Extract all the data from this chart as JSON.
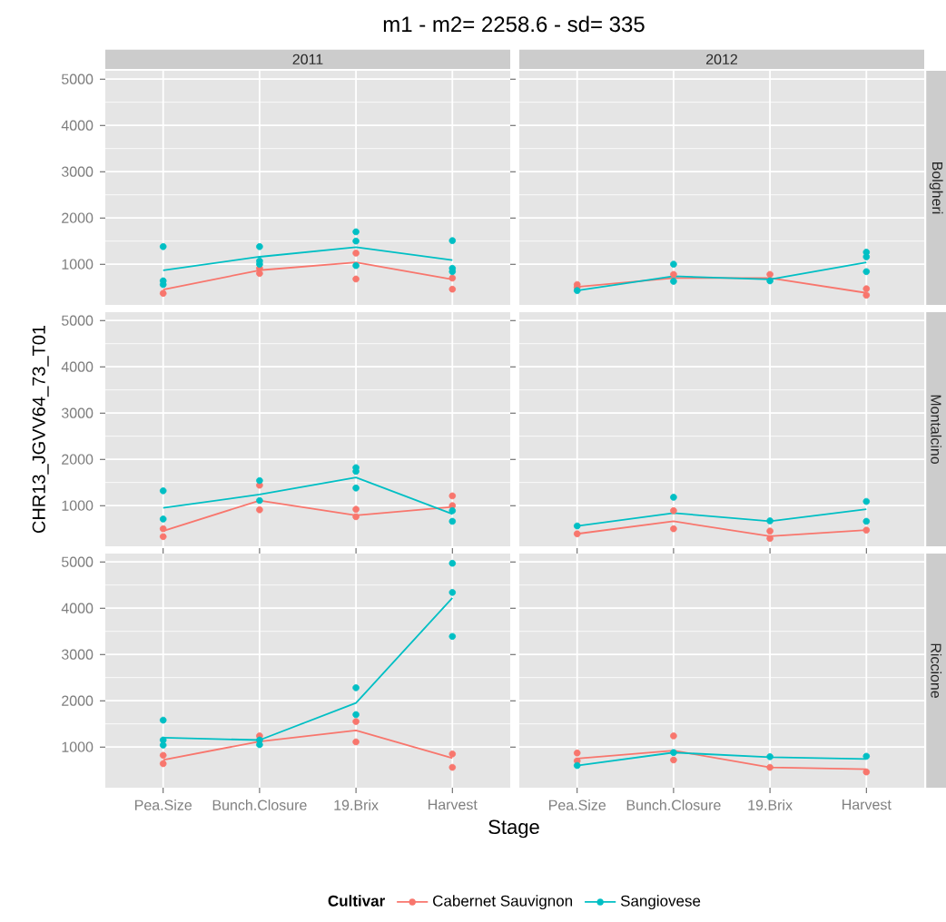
{
  "chart_data": [
    {
      "type": "line",
      "title": "m1 - m2= 2258.6  - sd= 335",
      "subtitle": "2011",
      "categories": [
        "Pea.Size",
        "Bunch.Closure",
        "19.Brix",
        "Harvest"
      ],
      "ylim": [
        120,
        5180
      ],
      "yticks": [
        1000,
        2000,
        3000,
        4000,
        5000
      ],
      "grid": true,
      "tick_labels": "y",
      "legend": "bottom",
      "legend_title": "Cultivar",
      "series": [
        {
          "name": "Cabernet Sauvignon",
          "color": "#f8766d",
          "values": [
            450,
            870,
            1040,
            670
          ]
        },
        {
          "name": "Sangiovese",
          "color": "#00bfc4",
          "values": [
            870,
            1160,
            1370,
            1090
          ]
        },
        {
          "type": "scatter",
          "color": "#f8766d",
          "x": [
            "Pea.Size",
            "Pea.Size",
            "Bunch.Closure",
            "Bunch.Closure",
            "19.Brix",
            "19.Brix",
            "Harvest",
            "Harvest"
          ],
          "values": [
            null,
            370,
            910,
            800,
            1240,
            680,
            700,
            460
          ]
        },
        {
          "type": "scatter",
          "color": "#00bfc4",
          "x": [
            "Pea.Size",
            "Pea.Size",
            "Pea.Size",
            "Bunch.Closure",
            "Bunch.Closure",
            "Bunch.Closure",
            "19.Brix",
            "19.Brix",
            "19.Brix",
            "Harvest",
            "Harvest",
            "Harvest"
          ],
          "values": [
            1380,
            640,
            560,
            1380,
            1070,
            1000,
            1700,
            1500,
            970,
            1510,
            910,
            840
          ]
        }
      ]
    },
    {
      "type": "line",
      "subtitle": "2012",
      "y2label": "Bolgheri",
      "categories": [
        "Pea.Size",
        "Bunch.Closure",
        "19.Brix",
        "Harvest"
      ],
      "ylim": [
        120,
        5180
      ],
      "yticks": [
        1000,
        2000,
        3000,
        4000,
        5000
      ],
      "grid": true,
      "tick_labels": false,
      "series": [
        {
          "color": "#f8766d",
          "values": [
            510,
            700,
            700,
            380
          ]
        },
        {
          "color": "#00bfc4",
          "values": [
            430,
            740,
            670,
            1040
          ]
        },
        {
          "type": "scatter",
          "color": "#f8766d",
          "x": [
            "Pea.Size",
            "Pea.Size",
            "Bunch.Closure",
            "Bunch.Closure",
            "19.Brix",
            "19.Brix",
            "Harvest",
            "Harvest"
          ],
          "values": [
            560,
            500,
            780,
            null,
            780,
            null,
            470,
            330
          ]
        },
        {
          "type": "scatter",
          "color": "#00bfc4",
          "x": [
            "Pea.Size",
            "Bunch.Closure",
            "Bunch.Closure",
            "19.Brix",
            "Harvest",
            "Harvest",
            "Harvest"
          ],
          "values": [
            430,
            1000,
            630,
            640,
            1260,
            1160,
            840
          ]
        }
      ]
    },
    {
      "type": "line",
      "ylabel": "CHR13_JGVV64_73_T01",
      "categories": [
        "Pea.Size",
        "Bunch.Closure",
        "19.Brix",
        "Harvest"
      ],
      "ylim": [
        120,
        5180
      ],
      "yticks": [
        1000,
        2000,
        3000,
        4000,
        5000
      ],
      "grid": true,
      "tick_labels": "y",
      "series": [
        {
          "color": "#f8766d",
          "values": [
            450,
            1110,
            790,
            970
          ]
        },
        {
          "color": "#00bfc4",
          "values": [
            950,
            1240,
            1610,
            820
          ]
        },
        {
          "type": "scatter",
          "color": "#f8766d",
          "x": [
            "Pea.Size",
            "Pea.Size",
            "Bunch.Closure",
            "Bunch.Closure",
            "19.Brix",
            "19.Brix",
            "Harvest",
            "Harvest"
          ],
          "values": [
            500,
            330,
            1440,
            910,
            920,
            760,
            1210,
            1000
          ]
        },
        {
          "type": "scatter",
          "color": "#00bfc4",
          "x": [
            "Pea.Size",
            "Pea.Size",
            "Bunch.Closure",
            "Bunch.Closure",
            "19.Brix",
            "19.Brix",
            "19.Brix",
            "Harvest",
            "Harvest"
          ],
          "values": [
            1320,
            710,
            1540,
            1110,
            1820,
            1740,
            1380,
            890,
            660
          ]
        }
      ]
    },
    {
      "type": "line",
      "y2label": "Montalcino",
      "categories": [
        "Pea.Size",
        "Bunch.Closure",
        "19.Brix",
        "Harvest"
      ],
      "ylim": [
        120,
        5180
      ],
      "yticks": [
        1000,
        2000,
        3000,
        4000,
        5000
      ],
      "grid": true,
      "tick_labels": false,
      "series": [
        {
          "color": "#f8766d",
          "values": [
            390,
            660,
            340,
            470
          ]
        },
        {
          "color": "#00bfc4",
          "values": [
            560,
            840,
            660,
            920
          ]
        },
        {
          "type": "scatter",
          "color": "#f8766d",
          "x": [
            "Pea.Size",
            "Pea.Size",
            "Bunch.Closure",
            "Bunch.Closure",
            "19.Brix",
            "19.Brix",
            "Harvest"
          ],
          "values": [
            null,
            390,
            890,
            500,
            450,
            290,
            470
          ]
        },
        {
          "type": "scatter",
          "color": "#00bfc4",
          "x": [
            "Pea.Size",
            "Bunch.Closure",
            "19.Brix",
            "Harvest",
            "Harvest"
          ],
          "values": [
            560,
            1180,
            670,
            1090,
            660
          ]
        }
      ]
    },
    {
      "type": "line",
      "xlabel": "Stage",
      "categories": [
        "Pea.Size",
        "Bunch.Closure",
        "19.Brix",
        "Harvest"
      ],
      "ylim": [
        120,
        5180
      ],
      "yticks": [
        1000,
        2000,
        3000,
        4000,
        5000
      ],
      "grid": true,
      "series": [
        {
          "color": "#f8766d",
          "values": [
            720,
            1120,
            1360,
            760
          ]
        },
        {
          "color": "#00bfc4",
          "values": [
            1200,
            1150,
            1950,
            4220
          ]
        },
        {
          "type": "scatter",
          "color": "#f8766d",
          "x": [
            "Pea.Size",
            "Pea.Size",
            "Bunch.Closure",
            "19.Brix",
            "19.Brix",
            "Harvest",
            "Harvest"
          ],
          "values": [
            820,
            640,
            1240,
            1550,
            1110,
            850,
            560
          ]
        },
        {
          "type": "scatter",
          "color": "#00bfc4",
          "x": [
            "Pea.Size",
            "Pea.Size",
            "Pea.Size",
            "Bunch.Closure",
            "Bunch.Closure",
            "19.Brix",
            "19.Brix",
            "Harvest",
            "Harvest",
            "Harvest"
          ],
          "values": [
            1580,
            1150,
            1040,
            1150,
            1050,
            2280,
            1700,
            4970,
            4340,
            3390
          ]
        }
      ]
    },
    {
      "type": "line",
      "y2label": "Riccione",
      "categories": [
        "Pea.Size",
        "Bunch.Closure",
        "19.Brix",
        "Harvest"
      ],
      "ylim": [
        120,
        5180
      ],
      "yticks": [
        1000,
        2000,
        3000,
        4000,
        5000
      ],
      "grid": true,
      "tick_labels": "x",
      "series": [
        {
          "color": "#f8766d",
          "values": [
            750,
            920,
            560,
            520
          ]
        },
        {
          "color": "#00bfc4",
          "values": [
            600,
            880,
            780,
            740
          ]
        },
        {
          "type": "scatter",
          "color": "#f8766d",
          "x": [
            "Pea.Size",
            "Pea.Size",
            "Bunch.Closure",
            "Bunch.Closure",
            "19.Brix",
            "Harvest"
          ],
          "values": [
            870,
            700,
            1240,
            720,
            560,
            460
          ]
        },
        {
          "type": "scatter",
          "color": "#00bfc4",
          "x": [
            "Pea.Size",
            "Bunch.Closure",
            "19.Brix",
            "Harvest"
          ],
          "values": [
            600,
            880,
            790,
            800
          ]
        }
      ]
    }
  ]
}
